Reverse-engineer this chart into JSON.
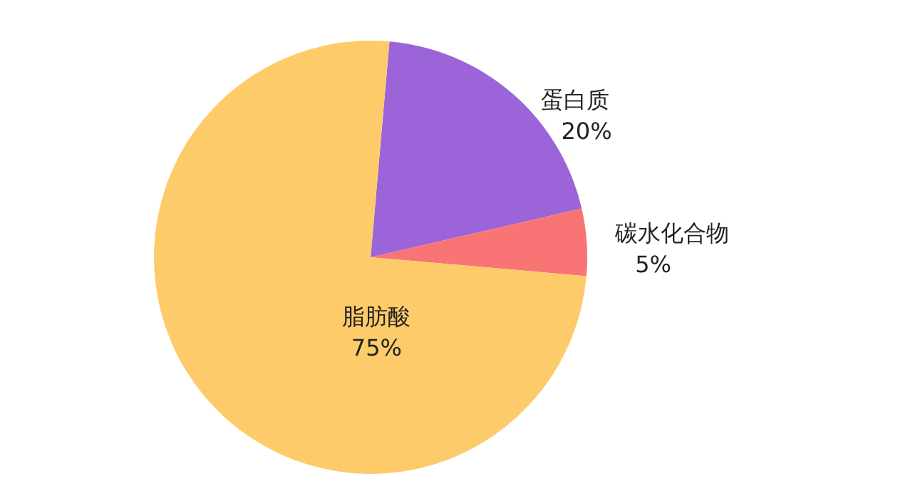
{
  "chart_data": {
    "type": "pie",
    "categories": [
      "蛋白质",
      "碳水化合物",
      "脂肪酸"
    ],
    "values": [
      20,
      5,
      75
    ],
    "colors": [
      "#9b64d8",
      "#f97474",
      "#fecb6a"
    ],
    "value_labels": [
      "20%",
      "5%",
      "75%"
    ],
    "legend": false
  }
}
